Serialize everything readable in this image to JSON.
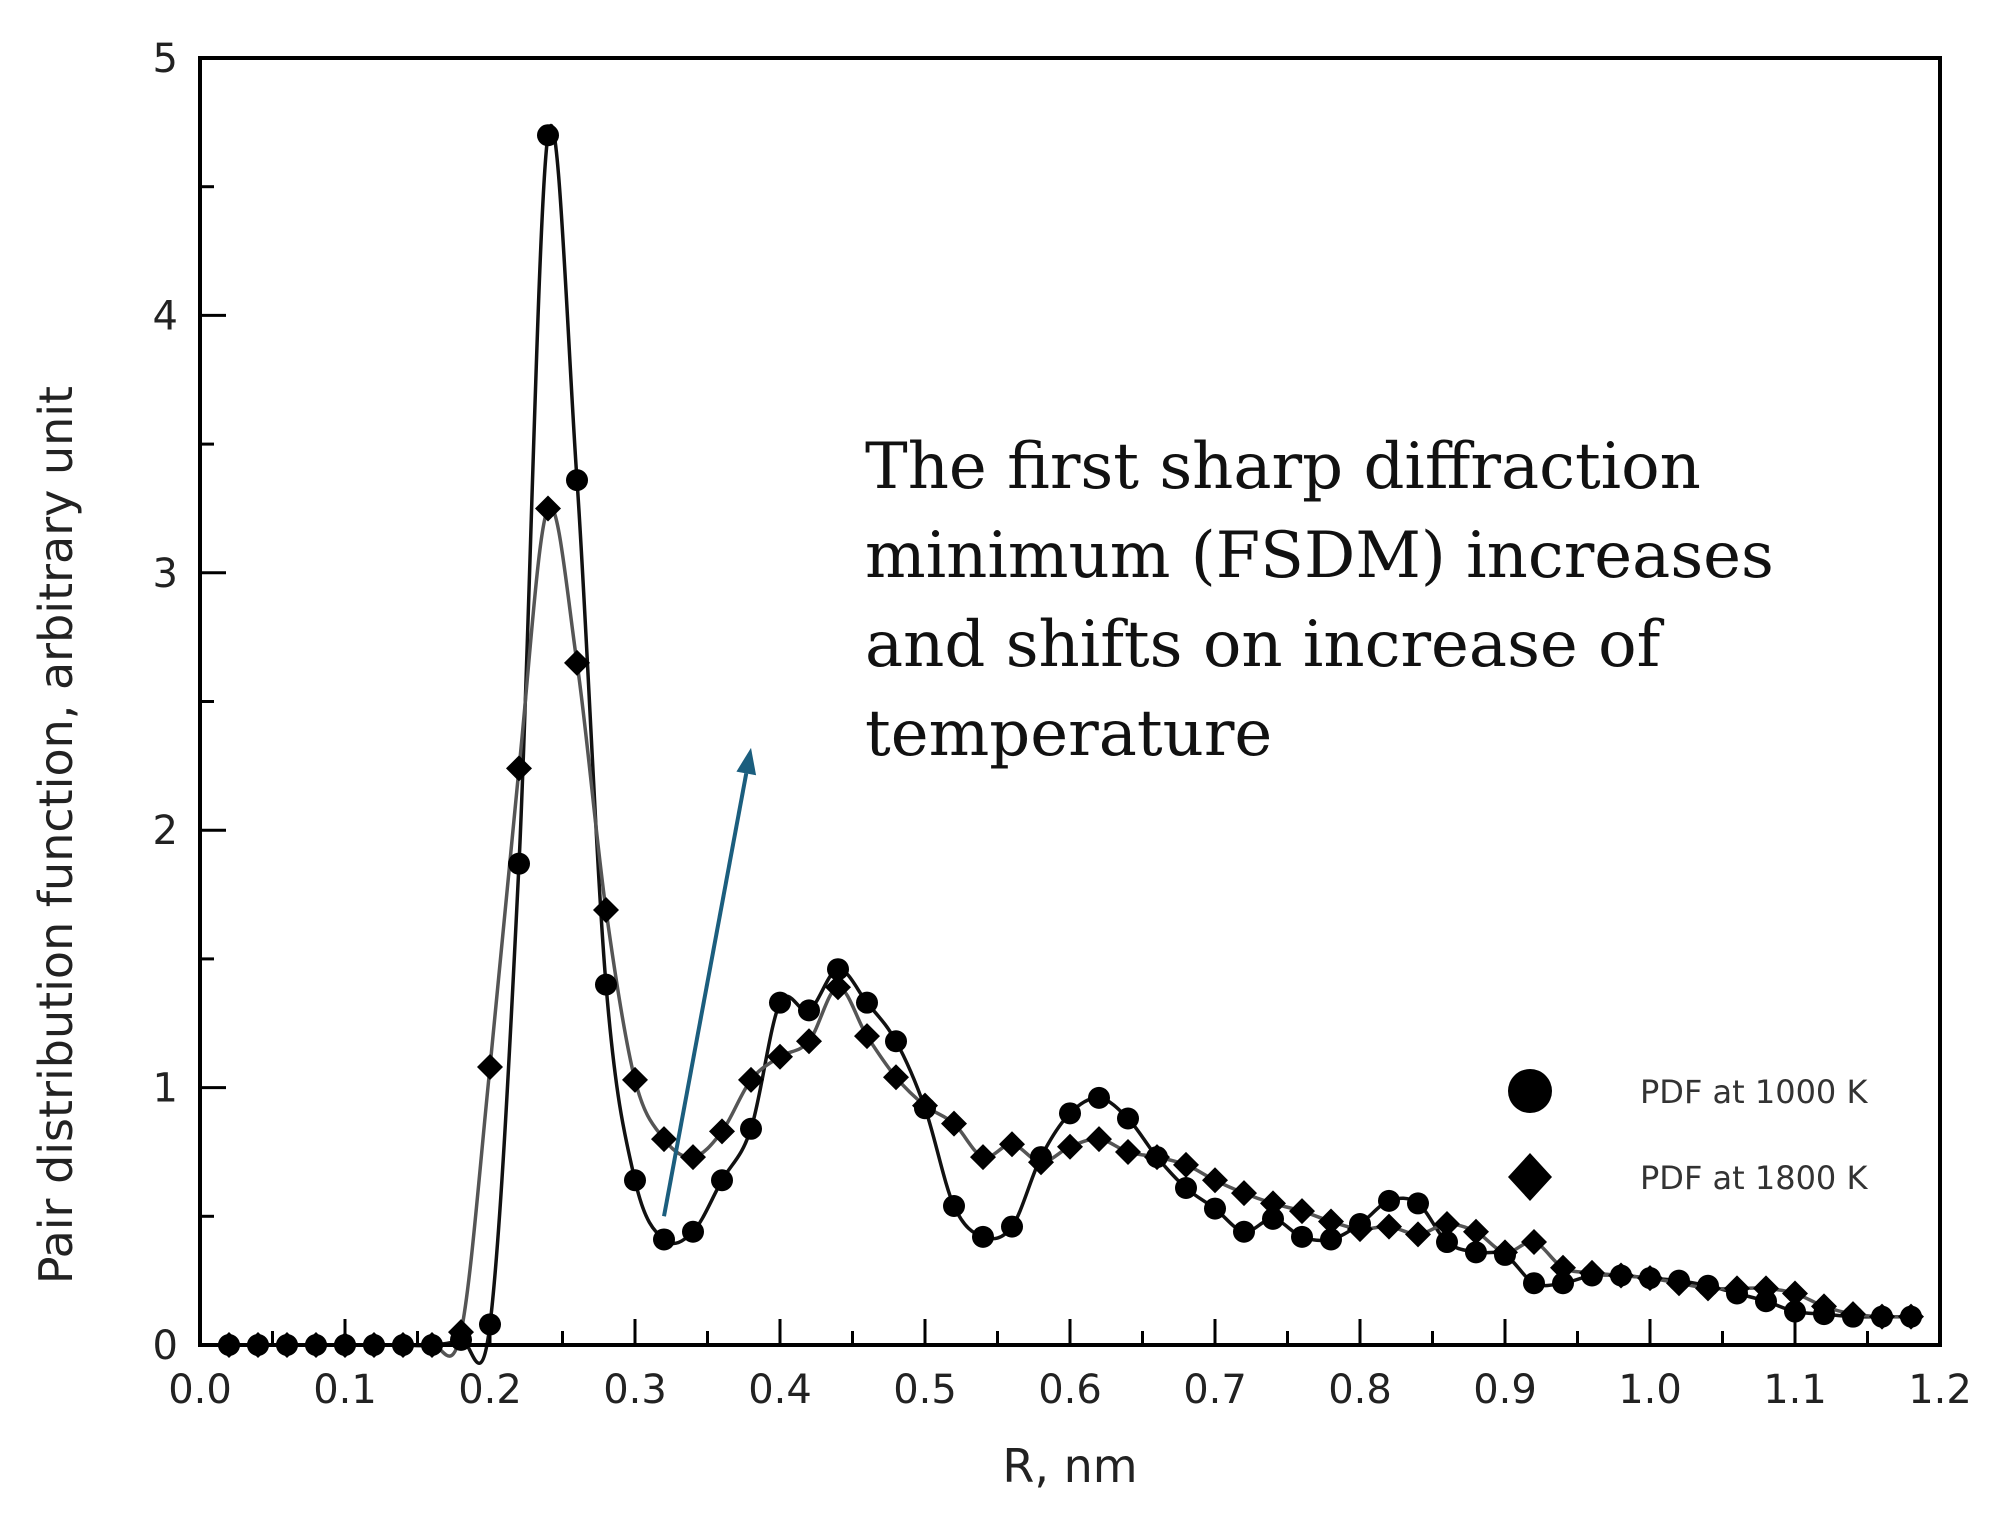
{
  "chart_data": {
    "type": "line",
    "title": "",
    "xlabel": "R, nm",
    "ylabel": "Pair distribution function, arbitrary unit",
    "xlim": [
      0.0,
      1.2
    ],
    "ylim": [
      0,
      5
    ],
    "x_ticks": [
      "0.0",
      "0.1",
      "0.2",
      "0.3",
      "0.4",
      "0.5",
      "0.6",
      "0.7",
      "0.8",
      "0.9",
      "1.0",
      "1.1",
      "1.2"
    ],
    "y_ticks": [
      "0",
      "1",
      "2",
      "3",
      "4",
      "5"
    ],
    "grid": false,
    "legend_position": "right",
    "annotation": {
      "lines": [
        "The first sharp diffraction",
        "minimum (FSDM) increases",
        "and shifts on increase of",
        "temperature"
      ],
      "arrow_color": "#1b5e7e",
      "arrow_from": [
        0.32,
        0.5
      ],
      "arrow_to": [
        0.38,
        2.32
      ]
    },
    "series": [
      {
        "name": "PDF at 1000 K",
        "marker": "circle",
        "color": "#000000",
        "x": [
          0.02,
          0.04,
          0.06,
          0.08,
          0.1,
          0.12,
          0.14,
          0.16,
          0.18,
          0.2,
          0.22,
          0.24,
          0.26,
          0.28,
          0.3,
          0.32,
          0.34,
          0.36,
          0.38,
          0.4,
          0.42,
          0.44,
          0.46,
          0.48,
          0.5,
          0.52,
          0.54,
          0.56,
          0.58,
          0.6,
          0.62,
          0.64,
          0.66,
          0.68,
          0.7,
          0.72,
          0.74,
          0.76,
          0.78,
          0.8,
          0.82,
          0.84,
          0.86,
          0.88,
          0.9,
          0.92,
          0.94,
          0.96,
          0.98,
          1.0,
          1.02,
          1.04,
          1.06,
          1.08,
          1.1,
          1.12,
          1.14,
          1.16,
          1.18
        ],
        "y": [
          0.0,
          0.0,
          0.0,
          0.0,
          0.0,
          0.0,
          0.0,
          0.0,
          0.02,
          0.08,
          1.87,
          4.7,
          3.36,
          1.4,
          0.64,
          0.41,
          0.44,
          0.64,
          0.84,
          1.33,
          1.3,
          1.46,
          1.33,
          1.18,
          0.92,
          0.54,
          0.42,
          0.46,
          0.73,
          0.9,
          0.96,
          0.88,
          0.73,
          0.61,
          0.53,
          0.44,
          0.49,
          0.42,
          0.41,
          0.47,
          0.56,
          0.55,
          0.4,
          0.36,
          0.35,
          0.24,
          0.24,
          0.27,
          0.27,
          0.26,
          0.25,
          0.23,
          0.2,
          0.17,
          0.13,
          0.12,
          0.11,
          0.11,
          0.11
        ]
      },
      {
        "name": "PDF at 1800 K",
        "marker": "diamond",
        "color": "#000000",
        "x": [
          0.02,
          0.04,
          0.06,
          0.08,
          0.1,
          0.12,
          0.14,
          0.16,
          0.18,
          0.2,
          0.22,
          0.24,
          0.26,
          0.28,
          0.3,
          0.32,
          0.34,
          0.36,
          0.38,
          0.4,
          0.42,
          0.44,
          0.46,
          0.48,
          0.5,
          0.52,
          0.54,
          0.56,
          0.58,
          0.6,
          0.62,
          0.64,
          0.66,
          0.68,
          0.7,
          0.72,
          0.74,
          0.76,
          0.78,
          0.8,
          0.82,
          0.84,
          0.86,
          0.88,
          0.9,
          0.92,
          0.94,
          0.96,
          0.98,
          1.0,
          1.02,
          1.04,
          1.06,
          1.08,
          1.1,
          1.12,
          1.14,
          1.16,
          1.18
        ],
        "y": [
          0.0,
          0.0,
          0.0,
          0.0,
          0.0,
          0.0,
          0.0,
          0.0,
          0.05,
          1.08,
          2.24,
          3.25,
          2.65,
          1.69,
          1.03,
          0.8,
          0.73,
          0.83,
          1.03,
          1.12,
          1.18,
          1.39,
          1.2,
          1.04,
          0.93,
          0.86,
          0.73,
          0.78,
          0.71,
          0.77,
          0.8,
          0.75,
          0.73,
          0.7,
          0.64,
          0.59,
          0.55,
          0.52,
          0.48,
          0.45,
          0.46,
          0.43,
          0.47,
          0.44,
          0.36,
          0.4,
          0.3,
          0.28,
          0.27,
          0.26,
          0.24,
          0.22,
          0.22,
          0.22,
          0.2,
          0.15,
          0.12,
          0.11,
          0.11
        ]
      }
    ]
  }
}
